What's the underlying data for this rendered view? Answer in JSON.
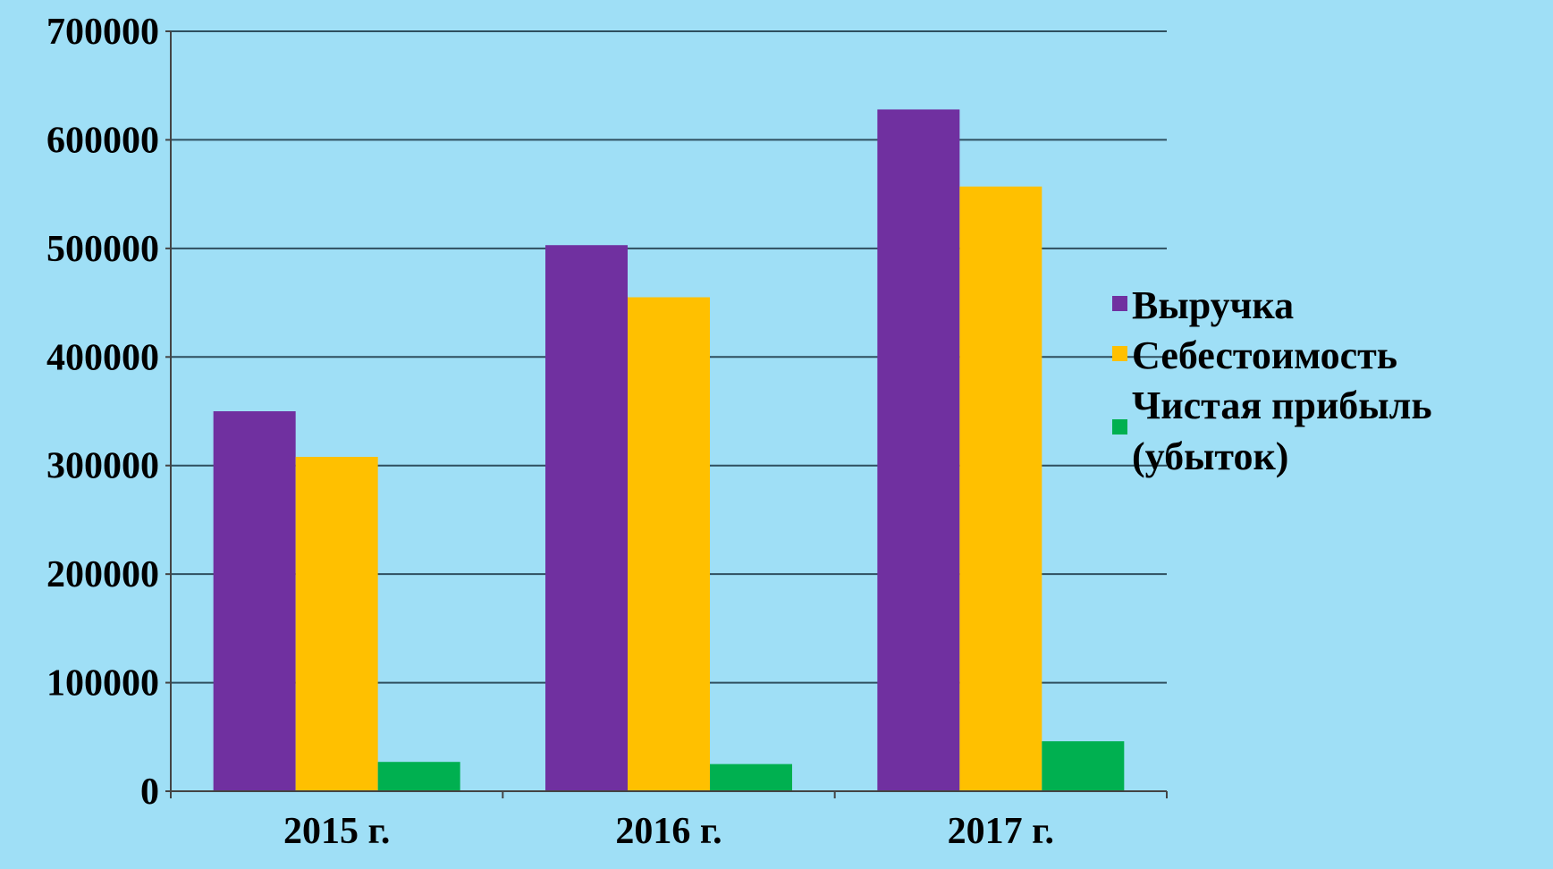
{
  "chart_data": {
    "type": "bar",
    "categories": [
      "2015 г.",
      "2016 г.",
      "2017 г."
    ],
    "series": [
      {
        "name": "Выручка",
        "values": [
          350000,
          503000,
          628000
        ],
        "color": "#7030a0"
      },
      {
        "name": "Себестоимость",
        "values": [
          308000,
          455000,
          557000
        ],
        "color": "#ffc000"
      },
      {
        "name": "Чистая прибыль (убыток)",
        "legend_lines": [
          "Чистая прибыль",
          "(убыток)"
        ],
        "values": [
          27000,
          25000,
          46000
        ],
        "color": "#00b050"
      }
    ],
    "ylim": [
      0,
      700000
    ],
    "yticks": [
      0,
      100000,
      200000,
      300000,
      400000,
      500000,
      600000,
      700000
    ],
    "ytick_labels": [
      "0",
      "100000",
      "200000",
      "300000",
      "400000",
      "500000",
      "600000",
      "700000"
    ],
    "grid": true,
    "legend": "right",
    "background": "#9fdff6",
    "gridline_color": "#2f4f5f"
  }
}
